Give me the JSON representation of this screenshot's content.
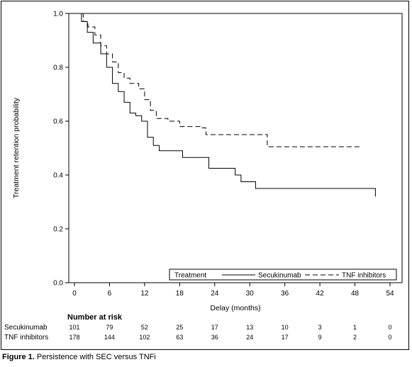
{
  "chart_data": {
    "type": "line",
    "subtype": "kaplan-meier step",
    "xlabel": "Delay (months)",
    "ylabel": "Treatment retention probability",
    "xlim": [
      0,
      54
    ],
    "ylim": [
      0,
      1
    ],
    "xticks": [
      0,
      6,
      12,
      18,
      24,
      30,
      36,
      42,
      48,
      54
    ],
    "yticks": [
      0.0,
      0.2,
      0.4,
      0.6,
      0.8,
      1.0
    ],
    "xtick_labels": [
      "0",
      "6",
      "12",
      "18",
      "24",
      "30",
      "36",
      "42",
      "48",
      "54"
    ],
    "ytick_labels": [
      "0.0",
      "0.2",
      "0.4",
      "0.6",
      "0.8",
      "1.0"
    ],
    "grid": false,
    "legend": {
      "title": "Treatment",
      "placement": "bottom-right inside plot",
      "entries": [
        {
          "label": "Secukinumab",
          "style": "solid"
        },
        {
          "label": "TNF inhibitors",
          "style": "dashed"
        }
      ]
    },
    "series": [
      {
        "name": "Secukinumab",
        "style": "solid",
        "x": [
          0,
          1.2,
          2.2,
          3.2,
          4.5,
          5.5,
          6.5,
          7.5,
          8.5,
          9.5,
          10.5,
          11.5,
          12.5,
          13.5,
          14.5,
          18.5,
          23,
          27.5,
          28.5,
          31,
          51.5
        ],
        "y": [
          1.0,
          0.97,
          0.93,
          0.89,
          0.85,
          0.8,
          0.74,
          0.71,
          0.67,
          0.63,
          0.62,
          0.6,
          0.54,
          0.51,
          0.49,
          0.465,
          0.425,
          0.4,
          0.375,
          0.35,
          0.32
        ]
      },
      {
        "name": "TNF inhibitors",
        "style": "dashed",
        "x": [
          0,
          1.5,
          2.3,
          3.5,
          4.5,
          5.5,
          6.5,
          7.5,
          8.5,
          9.5,
          11,
          12,
          13,
          14,
          16,
          18,
          21.5,
          22.5,
          33,
          49
        ],
        "y": [
          1.0,
          0.97,
          0.95,
          0.92,
          0.88,
          0.85,
          0.82,
          0.78,
          0.76,
          0.74,
          0.72,
          0.68,
          0.64,
          0.61,
          0.6,
          0.58,
          0.575,
          0.55,
          0.505,
          0.505
        ]
      }
    ],
    "risk_table": {
      "title": "Number at risk",
      "rows": [
        {
          "label": "Secukinumab",
          "values": [
            "101",
            "79",
            "52",
            "25",
            "17",
            "13",
            "10",
            "3",
            "1",
            "0"
          ]
        },
        {
          "label": "TNF inhibitors",
          "values": [
            "178",
            "144",
            "102",
            "63",
            "36",
            "24",
            "17",
            "9",
            "2",
            "0"
          ]
        }
      ]
    }
  },
  "caption": {
    "label": "Figure 1.",
    "text": " Persistence with SEC versus TNFi"
  }
}
